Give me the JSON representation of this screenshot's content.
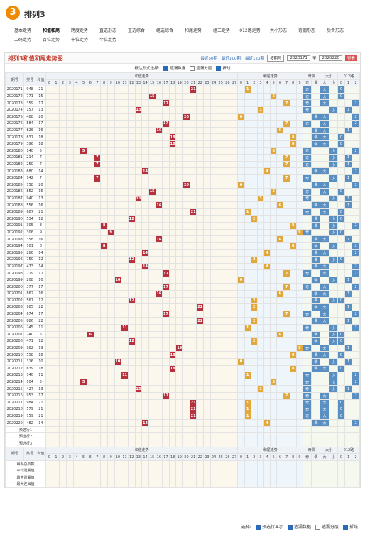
{
  "header": {
    "logo": "3",
    "title": "排列3"
  },
  "nav": [
    "基本走势",
    "和值和尾",
    "跨度走势",
    "直选形态",
    "直选综合",
    "组选综合",
    "和尾走势",
    "组三走势",
    "012路走势",
    "大小形态",
    "奇偶形态",
    "质合形态",
    "二码走势",
    "百位走势",
    "十位走势",
    "个位走势"
  ],
  "panel": {
    "title": "排列3和值和尾走势图",
    "recent": [
      "最近50期",
      "最近100期",
      "最近120期"
    ],
    "select": "按期号",
    "from": "2020171",
    "to_word": "至",
    "to": "2020220",
    "button": "查看"
  },
  "options": {
    "label": "标注形式选择:",
    "items": [
      "遗漏数据",
      "遗漏分层",
      "折线"
    ]
  },
  "table": {
    "head": [
      "期号",
      "奖号",
      "和值"
    ],
    "groups": [
      "和值走势",
      "和尾走势",
      "奇偶",
      "大小",
      "012路"
    ],
    "sum_cols": [
      0,
      1,
      2,
      3,
      4,
      5,
      6,
      7,
      8,
      9,
      10,
      11,
      12,
      13,
      14,
      15,
      16,
      17,
      18,
      19,
      20,
      21,
      22,
      23,
      24,
      25,
      26,
      27
    ],
    "tail_cols": [
      0,
      1,
      2,
      3,
      4,
      5,
      6,
      7,
      8,
      9
    ],
    "parity_cols": [
      "奇",
      "偶"
    ],
    "size_cols": [
      "大",
      "小"
    ],
    "mod_cols": [
      0,
      1,
      2
    ],
    "rows": [
      [
        "2020171",
        "948",
        21,
        1,
        "奇",
        "大",
        0
      ],
      [
        "2020172",
        "771",
        15,
        5,
        "奇",
        "大",
        0
      ],
      [
        "2020173",
        "359",
        17,
        7,
        "奇",
        "大",
        2
      ],
      [
        "2020174",
        "157",
        13,
        3,
        "奇",
        "小",
        1
      ],
      [
        "2020175",
        "488",
        20,
        0,
        "偶",
        "大",
        2
      ],
      [
        "2020176",
        "584",
        17,
        7,
        "奇",
        "大",
        2
      ],
      [
        "2020177",
        "826",
        16,
        6,
        "偶",
        "大",
        1
      ],
      [
        "2020178",
        "837",
        18,
        8,
        "偶",
        "大",
        0
      ],
      [
        "2020179",
        "396",
        18,
        8,
        "偶",
        "大",
        0
      ],
      [
        "2020180",
        "140",
        5,
        5,
        "奇",
        "小",
        2
      ],
      [
        "2020181",
        "214",
        7,
        7,
        "奇",
        "小",
        1
      ],
      [
        "2020182",
        "250",
        7,
        7,
        "奇",
        "小",
        1
      ],
      [
        "2020183",
        "680",
        14,
        4,
        "偶",
        "大",
        2
      ],
      [
        "2020184",
        "142",
        7,
        7,
        "奇",
        "小",
        1
      ],
      [
        "2020185",
        "758",
        20,
        0,
        "偶",
        "大",
        2
      ],
      [
        "2020186",
        "852",
        15,
        5,
        "奇",
        "大",
        0
      ],
      [
        "2020187",
        "940",
        13,
        3,
        "奇",
        "小",
        1
      ],
      [
        "2020188",
        "556",
        16,
        6,
        "偶",
        "大",
        1
      ],
      [
        "2020189",
        "687",
        21,
        1,
        "奇",
        "大",
        0
      ],
      [
        "2020190",
        "534",
        12,
        2,
        "偶",
        "小",
        0
      ],
      [
        "2020191",
        "305",
        8,
        8,
        "偶",
        "小",
        2
      ],
      [
        "2020192",
        "306",
        9,
        9,
        "奇",
        "小",
        0
      ],
      [
        "2020193",
        "358",
        16,
        6,
        "偶",
        "大",
        1
      ],
      [
        "2020194",
        "701",
        8,
        8,
        "偶",
        "小",
        2
      ],
      [
        "2020195",
        "266",
        14,
        4,
        "偶",
        "大",
        2
      ],
      [
        "2020196",
        "750",
        12,
        2,
        "偶",
        "小",
        0
      ],
      [
        "2020197",
        "473",
        14,
        4,
        "偶",
        "大",
        2
      ],
      [
        "2020198",
        "719",
        17,
        7,
        "奇",
        "大",
        2
      ],
      [
        "2020199",
        "208",
        10,
        0,
        "偶",
        "小",
        1
      ],
      [
        "2020200",
        "377",
        17,
        7,
        "奇",
        "大",
        2
      ],
      [
        "2020201",
        "862",
        16,
        6,
        "偶",
        "大",
        1
      ],
      [
        "2020202",
        "561",
        12,
        2,
        "偶",
        "小",
        0
      ],
      [
        "2020203",
        "985",
        22,
        2,
        "偶",
        "大",
        1
      ],
      [
        "2020204",
        "674",
        17,
        7,
        "奇",
        "大",
        2
      ],
      [
        "2020205",
        "886",
        22,
        2,
        "偶",
        "大",
        1
      ],
      [
        "2020206",
        "245",
        11,
        1,
        "奇",
        "小",
        2
      ],
      [
        "2020207",
        "240",
        6,
        6,
        "偶",
        "小",
        0
      ],
      [
        "2020208",
        "471",
        12,
        2,
        "偶",
        "小",
        0
      ],
      [
        "2020209",
        "982",
        19,
        9,
        "奇",
        "大",
        1
      ],
      [
        "2020210",
        "558",
        18,
        8,
        "偶",
        "大",
        0
      ],
      [
        "2020211",
        "316",
        10,
        0,
        "偶",
        "小",
        1
      ],
      [
        "2020212",
        "639",
        18,
        8,
        "偶",
        "大",
        0
      ],
      [
        "2020213",
        "740",
        11,
        1,
        "奇",
        "小",
        2
      ],
      [
        "2020214",
        "104",
        5,
        5,
        "奇",
        "小",
        2
      ],
      [
        "2020215",
        "427",
        13,
        3,
        "奇",
        "小",
        1
      ],
      [
        "2020216",
        "953",
        17,
        7,
        "奇",
        "大",
        2
      ],
      [
        "2020217",
        "984",
        21,
        1,
        "奇",
        "大",
        0
      ],
      [
        "2020218",
        "579",
        21,
        1,
        "奇",
        "大",
        0
      ],
      [
        "2020219",
        "759",
        21,
        1,
        "奇",
        "大",
        0
      ],
      [
        "2020220",
        "482",
        14,
        4,
        "偶",
        "大",
        2
      ]
    ],
    "preselect": [
      "预选行1",
      "预选行2",
      "预选行3"
    ],
    "stats": [
      "出现总次数",
      "平均遗漏值",
      "最大遗漏值",
      "最大连出值"
    ]
  },
  "footer": {
    "label": "选择:",
    "items": [
      "预选行显示",
      "遗漏数据",
      "遗漏分层",
      "折线"
    ]
  }
}
